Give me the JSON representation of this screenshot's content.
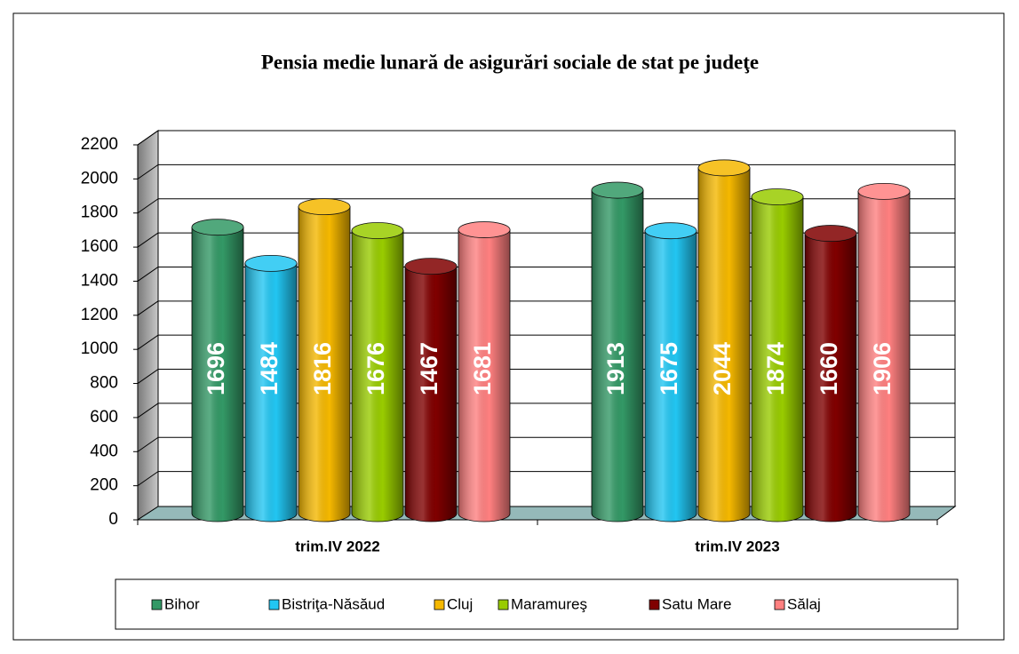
{
  "chart_data": {
    "type": "bar3d",
    "title": "Pensia medie lunară de asigurări sociale de stat pe judeţe",
    "categories": [
      "trim.IV 2022",
      "trim.IV 2023"
    ],
    "series": [
      {
        "name": "Bihor",
        "color": "#339966",
        "values": [
          1696,
          1913
        ]
      },
      {
        "name": "Bistriţa-Năsăud",
        "color": "#22c6f2",
        "values": [
          1484,
          1675
        ]
      },
      {
        "name": "Cluj",
        "color": "#f5b800",
        "values": [
          1816,
          2044
        ]
      },
      {
        "name": "Maramureş",
        "color": "#99cc00",
        "values": [
          1676,
          1874
        ]
      },
      {
        "name": "Satu Mare",
        "color": "#800000",
        "values": [
          1467,
          1660
        ]
      },
      {
        "name": "Sălaj",
        "color": "#ff8080",
        "values": [
          1681,
          1906
        ]
      }
    ],
    "ylim": [
      0,
      2200
    ],
    "yticks": [
      0,
      200,
      400,
      600,
      800,
      1000,
      1200,
      1400,
      1600,
      1800,
      2000,
      2200
    ],
    "grid": true,
    "legend": "bottom"
  }
}
